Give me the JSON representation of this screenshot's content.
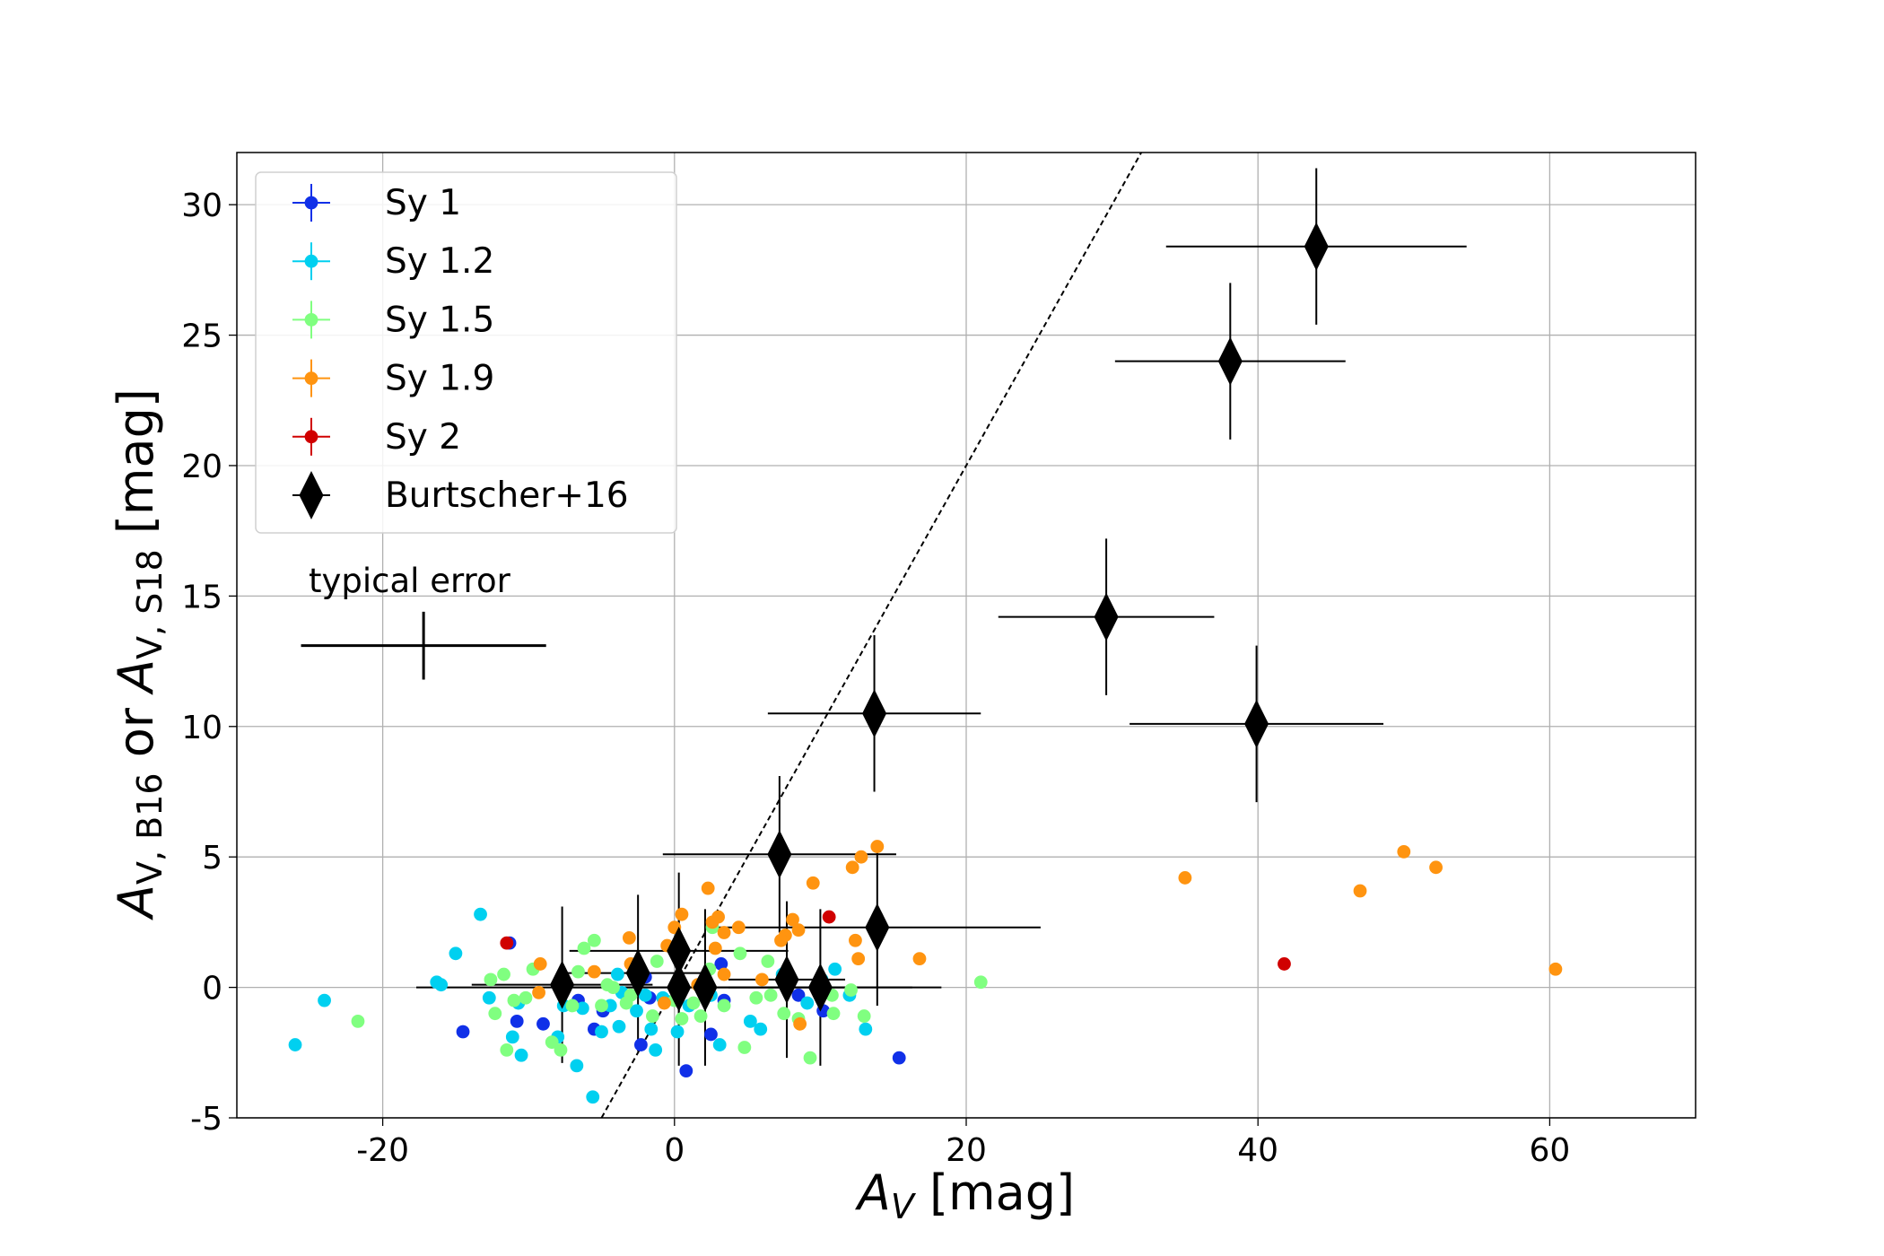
{
  "chart_data": {
    "type": "scatter",
    "x_label": [
      "A",
      "V",
      " [mag]"
    ],
    "y_label": [
      "A",
      "V, B16",
      " or  ",
      "A",
      "V, S18",
      " [mag]"
    ],
    "xlim": [
      -30,
      70
    ],
    "xticks": [
      -20,
      0,
      20,
      40,
      60
    ],
    "ylim": [
      -5,
      32
    ],
    "yticks": [
      -5,
      0,
      5,
      10,
      15,
      20,
      25,
      30
    ],
    "grid": true,
    "legend": "upper left",
    "reference_line": {
      "x": [
        -5,
        32
      ],
      "y": [
        -5,
        32
      ],
      "color": "#000000"
    },
    "series": [
      {
        "name": "Sy 1",
        "color": "#1030e8",
        "x": [
          -14.5,
          -11.3,
          -10.8,
          -9,
          -6.6,
          -5.5,
          -4.9,
          -2.3,
          -1.7,
          0.8,
          2.5,
          3.2,
          3.4,
          10.2,
          15.4,
          -2,
          8.5
        ],
        "y": [
          -1.7,
          1.7,
          -1.3,
          -1.4,
          -0.5,
          -1.6,
          -0.9,
          -2.2,
          -0.4,
          -3.2,
          -1.8,
          0.9,
          -0.5,
          -0.9,
          -2.7,
          0.4,
          -0.3
        ]
      },
      {
        "name": "Sy 1.2",
        "color": "#00d0f0",
        "x": [
          -26,
          -24,
          -15,
          -16.3,
          -16,
          -13.3,
          -12.7,
          -11.1,
          -10.5,
          -10.7,
          -8,
          -7.6,
          -6.7,
          -6.3,
          -5.6,
          -5,
          -4.4,
          -3.9,
          -3.6,
          -2.6,
          -2,
          -1.6,
          -0.8,
          0.2,
          1,
          2.5,
          3.1,
          5.2,
          5.9,
          7.4,
          9.1,
          10.1,
          11,
          12,
          13.1,
          -3.8,
          -1.3
        ],
        "y": [
          -2.2,
          -0.5,
          1.3,
          0.2,
          0.1,
          2.8,
          -0.4,
          -1.9,
          -2.6,
          -0.6,
          -1.9,
          -0.7,
          -3,
          -0.8,
          -4.2,
          -1.7,
          -0.7,
          0.5,
          -0.2,
          -0.9,
          -0.3,
          -1.6,
          -0.4,
          -1.7,
          -0.7,
          -0.3,
          -2.2,
          -1.3,
          -1.6,
          0.5,
          -0.6,
          0.3,
          0.7,
          -0.3,
          -1.6,
          -1.5,
          -2.4
        ]
      },
      {
        "name": "Sy 1.5",
        "color": "#80ff80",
        "x": [
          -21.7,
          21,
          -12.6,
          -11.7,
          -11,
          -9.7,
          -8.4,
          -7.8,
          -6.2,
          -5.5,
          -5,
          -4.2,
          -3.3,
          -1.5,
          -1.2,
          0,
          0.5,
          1.3,
          1.8,
          2.6,
          3.4,
          4.5,
          4.8,
          5.6,
          6.6,
          6.4,
          8.5,
          9.3,
          10.8,
          10.9,
          12.1,
          13,
          -11.5,
          -12.3,
          -10.2,
          -7,
          -6.6,
          -4.6,
          -3,
          2.4,
          7.5
        ],
        "y": [
          -1.3,
          0.2,
          0.3,
          0.5,
          -0.5,
          0.7,
          -2.1,
          -2.4,
          1.5,
          1.8,
          -0.7,
          0,
          -0.6,
          -1.1,
          1,
          -0.5,
          -1.2,
          -0.6,
          -1.1,
          2.3,
          -0.7,
          1.3,
          -2.3,
          -0.4,
          -0.3,
          1,
          -1.2,
          -2.7,
          -0.3,
          -1,
          -0.1,
          -1.1,
          -2.4,
          -1,
          -0.4,
          -0.7,
          0.6,
          0.1,
          -0.3,
          0.7,
          -1
        ]
      },
      {
        "name": "Sy 1.9",
        "color": "#ff9410",
        "x": [
          35,
          47,
          50,
          52.2,
          60.4,
          16.8,
          13.9,
          12.8,
          12.2,
          12.4,
          12.6,
          9.5,
          7.6,
          7.3,
          8.1,
          8.5,
          10.1,
          8.6,
          2.3,
          3,
          2.6,
          3.4,
          4.4,
          2.8,
          0.5,
          0,
          -0.5,
          -3.1,
          -3,
          -5.5,
          -9.2,
          -9.3,
          1.6,
          -0.7,
          2.2,
          3.4,
          6
        ],
        "y": [
          4.2,
          3.7,
          5.2,
          4.6,
          0.7,
          1.1,
          5.4,
          5,
          4.6,
          1.8,
          1.1,
          4,
          2,
          1.8,
          2.6,
          2.2,
          -0.2,
          -1.4,
          3.8,
          2.7,
          2.5,
          2.1,
          2.3,
          1.5,
          2.8,
          2.3,
          1.6,
          1.9,
          0.9,
          0.6,
          0.9,
          -0.2,
          0.1,
          -0.6,
          -0.3,
          0.5,
          0.3
        ]
      },
      {
        "name": "Sy 2",
        "color": "#d00000",
        "x": [
          -11.5,
          10.6,
          41.8
        ],
        "y": [
          1.7,
          2.7,
          0.9
        ]
      },
      {
        "name": "Burtscher+16",
        "color": "#000000",
        "marker": "diamond",
        "x": [
          44,
          38.1,
          29.6,
          39.9,
          13.7,
          7.2,
          13.9,
          -7.7,
          -2.5,
          0.3,
          0.3,
          2.1,
          7.7,
          10
        ],
        "y": [
          28.4,
          24,
          14.2,
          10.1,
          10.5,
          5.1,
          2.3,
          0.1,
          0.55,
          1.4,
          0,
          0,
          0.3,
          0
        ],
        "xerr": [
          10.3,
          7.9,
          7.4,
          8.7,
          7.3,
          8,
          11.2,
          6.2,
          5,
          7.5,
          18,
          10,
          4,
          6.3
        ],
        "yerr": [
          3,
          3,
          3,
          3,
          3,
          3,
          3,
          3,
          3,
          3,
          3,
          3,
          3,
          3
        ]
      }
    ],
    "typical_error": {
      "label": "typical error",
      "x": -17.2,
      "y": 13.1,
      "xerr": 8.4,
      "yerr": 1.3
    }
  }
}
